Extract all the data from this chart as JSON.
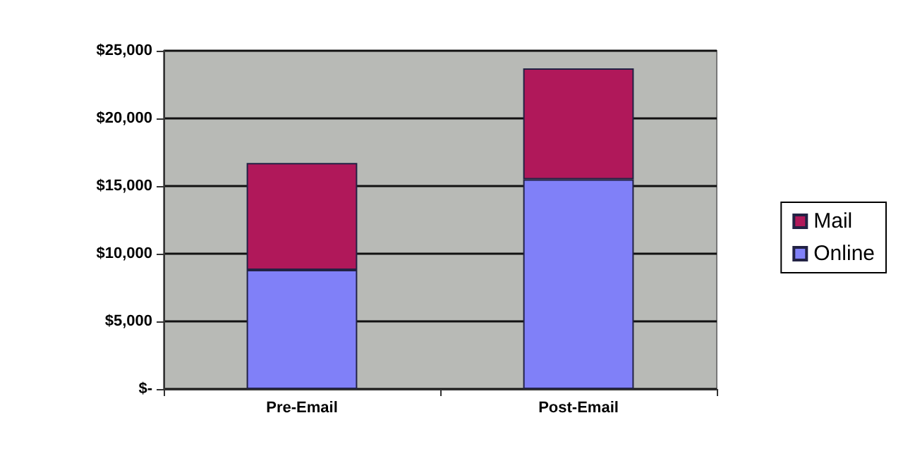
{
  "chart_data": {
    "type": "bar",
    "stacked": true,
    "categories": [
      "Pre-Email",
      "Post-Email"
    ],
    "series": [
      {
        "name": "Online",
        "color": "#8080f8",
        "values": [
          8800,
          15500
        ]
      },
      {
        "name": "Mail",
        "color": "#b0185a",
        "values": [
          7900,
          8200
        ]
      }
    ],
    "ylim": [
      0,
      25000
    ],
    "yticks": [
      {
        "value": 0,
        "label": "$-"
      },
      {
        "value": 5000,
        "label": "$5,000"
      },
      {
        "value": 10000,
        "label": "$10,000"
      },
      {
        "value": 15000,
        "label": "$15,000"
      },
      {
        "value": 20000,
        "label": "$20,000"
      },
      {
        "value": 25000,
        "label": "$25,000"
      }
    ],
    "grid": "y",
    "legend": "right"
  }
}
